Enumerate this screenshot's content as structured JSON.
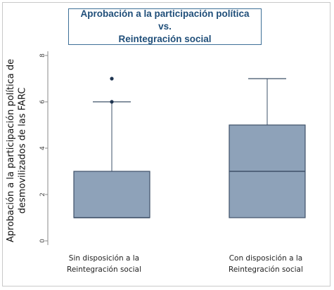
{
  "title_lines": [
    "Aprobación a la participación política vs.",
    "Reintegración social"
  ],
  "colors": {
    "box_fill": "#8ea2b9",
    "box_stroke": "#3e5068",
    "title_text": "#1f4e79",
    "title_border": "#3d6f97",
    "axis": "#8a8a8a",
    "tick_text": "#444444"
  },
  "chart_data": {
    "type": "boxplot",
    "ylabel_lines": [
      "Aprobación a la participación política de",
      "desmovilizados de las FARC"
    ],
    "xlabel": "",
    "ylim": [
      0,
      8
    ],
    "yticks": [
      "0",
      "2",
      "4",
      "6",
      "8"
    ],
    "grid": false,
    "categories": [
      [
        "Sin disposición a la",
        "Reintegración social"
      ],
      [
        "Con disposición a la",
        "Reintegración social"
      ]
    ],
    "boxes": [
      {
        "min": 1,
        "q1": 1,
        "median": 1,
        "q3": 3,
        "max": 6,
        "outliers": [
          6,
          7
        ]
      },
      {
        "min": 1,
        "q1": 1,
        "median": 3,
        "q3": 5,
        "max": 7,
        "outliers": []
      }
    ]
  }
}
